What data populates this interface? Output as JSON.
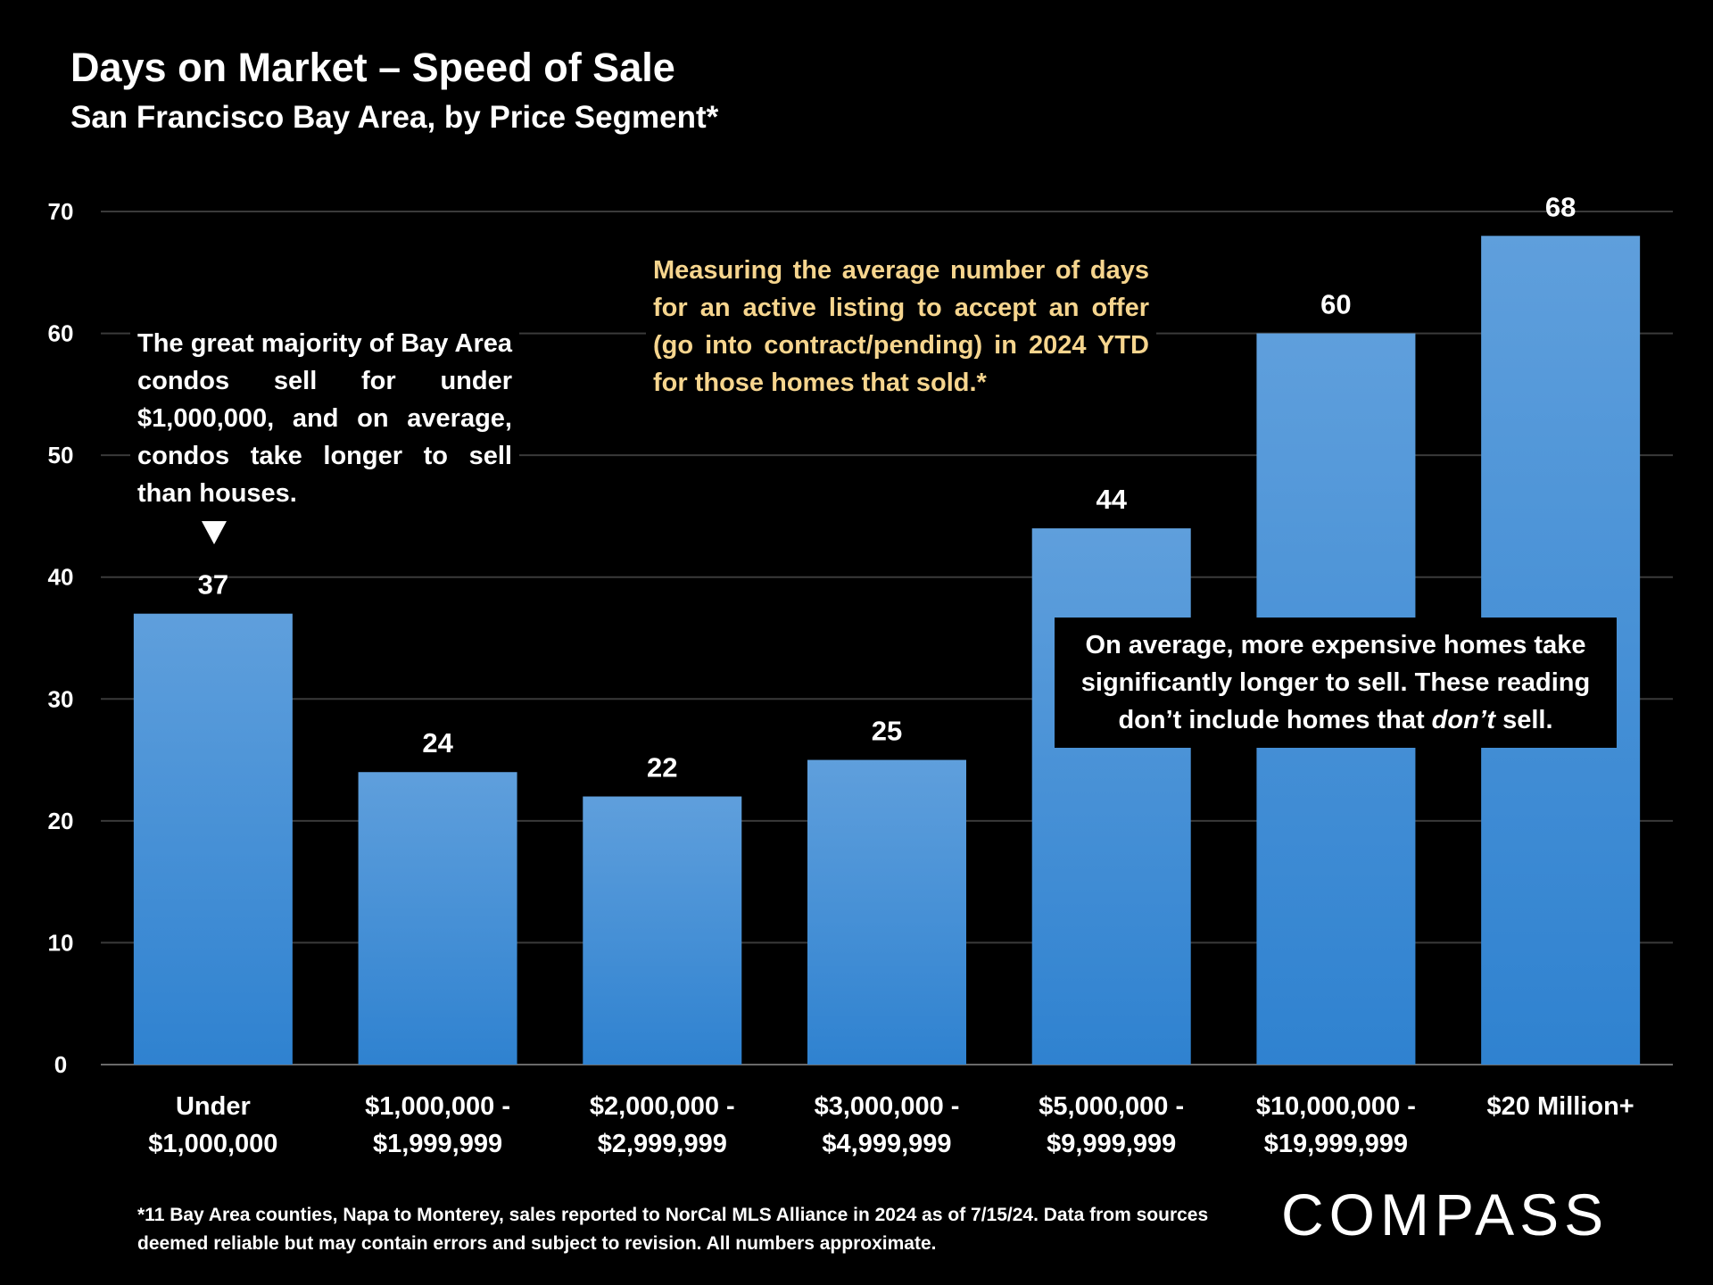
{
  "title": "Days on Market – Speed of Sale",
  "subtitle": "San Francisco Bay Area, by Price Segment*",
  "chart_data": {
    "type": "bar",
    "title": "Days on Market – Speed of Sale",
    "subtitle": "San Francisco Bay Area, by Price Segment*",
    "categories": [
      [
        "Under",
        "$1,000,000"
      ],
      [
        "$1,000,000 -",
        "$1,999,999"
      ],
      [
        "$2,000,000 -",
        "$2,999,999"
      ],
      [
        "$3,000,000 -",
        "$4,999,999"
      ],
      [
        "$5,000,000 -",
        "$9,999,999"
      ],
      [
        "$10,000,000 -",
        "$19,999,999"
      ],
      [
        "$20 Million+"
      ]
    ],
    "values": [
      37,
      24,
      22,
      25,
      44,
      60,
      68
    ],
    "ylim": [
      0,
      70
    ],
    "yticks": [
      0,
      10,
      20,
      30,
      40,
      50,
      60,
      70
    ],
    "grid": true,
    "xlabel": "",
    "ylabel": "",
    "bar_color_top": "#5f9fdc",
    "bar_color_bottom": "#2f82d0"
  },
  "annotations": {
    "left": "The great majority of Bay Area condos sell for under $1,000,000, and on average, condos take longer to sell than houses.",
    "top": "Measuring the average number of days for an active listing to accept an offer (go into contract/pending) in 2024 YTD for those homes that sold.*",
    "right_before": "On average, more expensive homes take significantly longer to sell. These reading ",
    "right_emphasis": "don’t",
    "right_after": " sell.",
    "right_mid": "don’t include homes that "
  },
  "footnote": "*11 Bay Area counties, Napa to Monterey, sales reported to NorCal MLS Alliance in 2024 as of 7/15/24. Data from sources deemed reliable but may contain errors and subject to revision. All numbers approximate.",
  "logo": "COMPASS",
  "colors": {
    "background": "#000000",
    "highlight_text": "#f6d58e",
    "gridline": "#3a3a3a"
  }
}
